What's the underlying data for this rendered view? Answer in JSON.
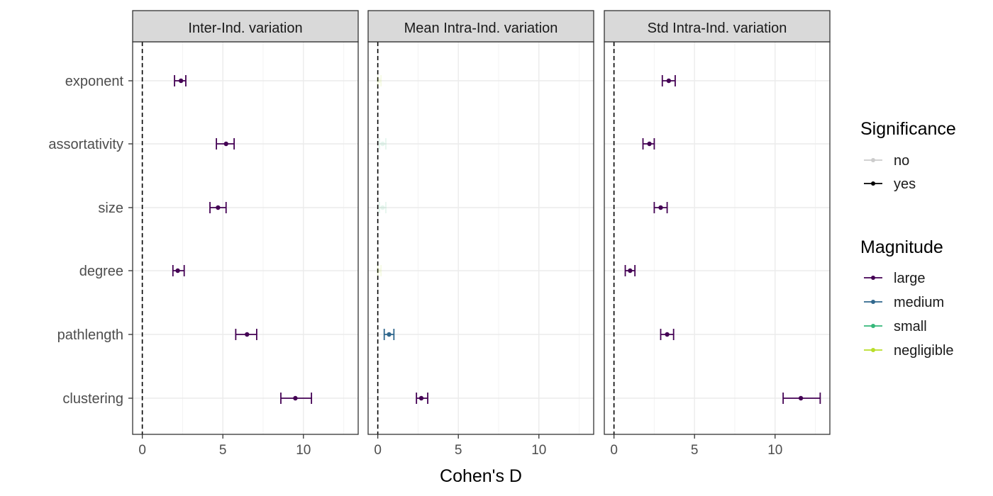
{
  "chart_data": {
    "type": "scatter",
    "xlabel": "Cohen's D",
    "xlim": [
      -0.6,
      13.4
    ],
    "xticks": [
      0,
      5,
      10
    ],
    "reference_line_x": 0,
    "categories": [
      "exponent",
      "assortativity",
      "size",
      "degree",
      "pathlength",
      "clustering"
    ],
    "panels": [
      {
        "title": "Inter-Ind. variation",
        "points": [
          {
            "category": "exponent",
            "value": 2.4,
            "low": 2.0,
            "high": 2.7,
            "magnitude": "large",
            "significance": "yes"
          },
          {
            "category": "assortativity",
            "value": 5.2,
            "low": 4.6,
            "high": 5.7,
            "magnitude": "large",
            "significance": "yes"
          },
          {
            "category": "size",
            "value": 4.7,
            "low": 4.2,
            "high": 5.2,
            "magnitude": "large",
            "significance": "yes"
          },
          {
            "category": "degree",
            "value": 2.2,
            "low": 1.9,
            "high": 2.6,
            "magnitude": "large",
            "significance": "yes"
          },
          {
            "category": "pathlength",
            "value": 6.5,
            "low": 5.8,
            "high": 7.1,
            "magnitude": "large",
            "significance": "yes"
          },
          {
            "category": "clustering",
            "value": 9.5,
            "low": 8.6,
            "high": 10.5,
            "magnitude": "large",
            "significance": "yes"
          }
        ]
      },
      {
        "title": "Mean Intra-Ind. variation",
        "points": [
          {
            "category": "exponent",
            "value": 0.1,
            "low": 0.0,
            "high": 0.2,
            "magnitude": "negligible",
            "significance": "no"
          },
          {
            "category": "assortativity",
            "value": 0.3,
            "low": 0.1,
            "high": 0.5,
            "magnitude": "small",
            "significance": "no"
          },
          {
            "category": "size",
            "value": 0.3,
            "low": 0.1,
            "high": 0.5,
            "magnitude": "small",
            "significance": "no"
          },
          {
            "category": "degree",
            "value": 0.1,
            "low": 0.0,
            "high": 0.2,
            "magnitude": "negligible",
            "significance": "no"
          },
          {
            "category": "pathlength",
            "value": 0.7,
            "low": 0.4,
            "high": 1.0,
            "magnitude": "medium",
            "significance": "yes"
          },
          {
            "category": "clustering",
            "value": 2.7,
            "low": 2.4,
            "high": 3.1,
            "magnitude": "large",
            "significance": "yes"
          }
        ]
      },
      {
        "title": "Std Intra-Ind. variation",
        "points": [
          {
            "category": "exponent",
            "value": 3.4,
            "low": 3.0,
            "high": 3.8,
            "magnitude": "large",
            "significance": "yes"
          },
          {
            "category": "assortativity",
            "value": 2.2,
            "low": 1.8,
            "high": 2.5,
            "magnitude": "large",
            "significance": "yes"
          },
          {
            "category": "size",
            "value": 2.9,
            "low": 2.5,
            "high": 3.3,
            "magnitude": "large",
            "significance": "yes"
          },
          {
            "category": "degree",
            "value": 1.0,
            "low": 0.7,
            "high": 1.3,
            "magnitude": "large",
            "significance": "yes"
          },
          {
            "category": "pathlength",
            "value": 3.3,
            "low": 2.9,
            "high": 3.7,
            "magnitude": "large",
            "significance": "yes"
          },
          {
            "category": "clustering",
            "value": 11.6,
            "low": 10.5,
            "high": 12.8,
            "magnitude": "large",
            "significance": "yes"
          }
        ]
      }
    ],
    "legend": {
      "placement": "right",
      "significance": {
        "title": "Significance",
        "items": [
          {
            "label": "no",
            "color": "#cccccc"
          },
          {
            "label": "yes",
            "color": "#000000"
          }
        ]
      },
      "magnitude": {
        "title": "Magnitude",
        "items": [
          {
            "label": "large",
            "color": "#440154"
          },
          {
            "label": "medium",
            "color": "#31688e"
          },
          {
            "label": "small",
            "color": "#35b779"
          },
          {
            "label": "negligible",
            "color": "#b8de29"
          }
        ]
      }
    },
    "colors": {
      "strip_fill": "#d9d9d9",
      "panel_border": "#333333",
      "grid": "#ebebeb"
    },
    "grid": true
  }
}
